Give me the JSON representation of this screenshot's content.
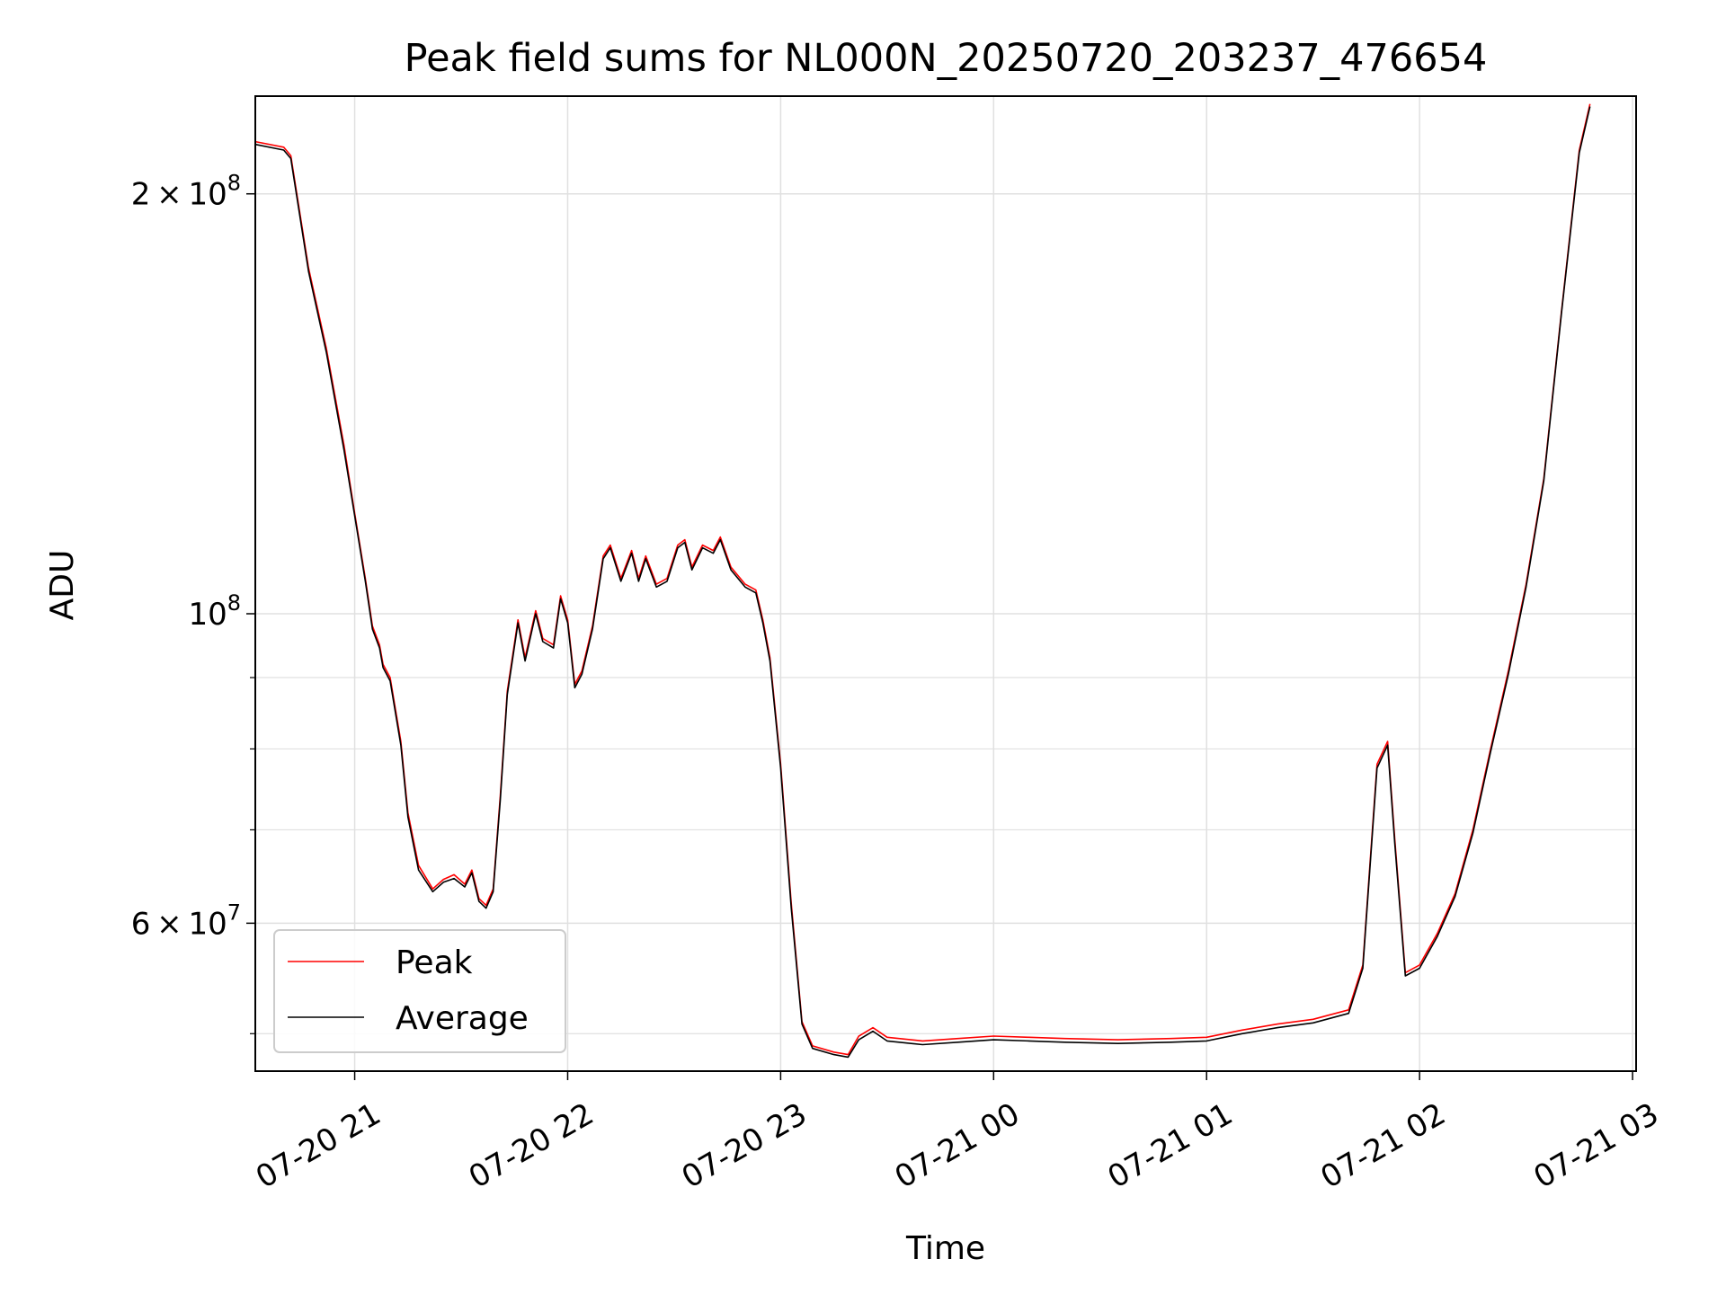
{
  "chart_data": {
    "type": "line",
    "title": "Peak field sums for NL000N_20250720_203237_476654",
    "xlabel": "Time",
    "ylabel": "ADU",
    "x_range": [
      "2025-07-20 20:32",
      "2025-07-21 03:01"
    ],
    "ylim": [
      47000000,
      235000000
    ],
    "y_scale": "log",
    "grid": true,
    "legend_placement": "lower-left",
    "x_tick_labels": [
      "07-20 21",
      "07-20 22",
      "07-20 23",
      "07-21 00",
      "07-21 01",
      "07-21 02",
      "07-21 03"
    ],
    "y_tick_labels": [
      {
        "value": 200000000,
        "mantissa": "2",
        "exp": "8"
      },
      {
        "value": 100000000,
        "mantissa": "",
        "exp": "8"
      },
      {
        "value": 60000000,
        "mantissa": "6",
        "exp": "7"
      }
    ],
    "series": [
      {
        "name": "Peak",
        "color": "#ff0000",
        "points": [
          [
            "2025-07-20 20:32",
            218000000
          ],
          [
            "2025-07-20 20:40",
            216000000
          ],
          [
            "2025-07-20 20:42",
            213000000
          ],
          [
            "2025-07-20 20:47",
            177000000
          ],
          [
            "2025-07-20 20:52",
            155000000
          ],
          [
            "2025-07-20 20:57",
            132000000
          ],
          [
            "2025-07-20 21:00",
            118000000
          ],
          [
            "2025-07-20 21:03",
            106000000
          ],
          [
            "2025-07-20 21:05",
            98000000
          ],
          [
            "2025-07-20 21:07",
            95000000
          ],
          [
            "2025-07-20 21:08",
            92000000
          ],
          [
            "2025-07-20 21:10",
            90000000
          ],
          [
            "2025-07-20 21:13",
            81000000
          ],
          [
            "2025-07-20 21:15",
            72000000
          ],
          [
            "2025-07-20 21:18",
            66000000
          ],
          [
            "2025-07-20 21:22",
            63500000
          ],
          [
            "2025-07-20 21:25",
            64500000
          ],
          [
            "2025-07-20 21:28",
            65000000
          ],
          [
            "2025-07-20 21:31",
            64000000
          ],
          [
            "2025-07-20 21:33",
            65500000
          ],
          [
            "2025-07-20 21:35",
            62500000
          ],
          [
            "2025-07-20 21:37",
            61800000
          ],
          [
            "2025-07-20 21:39",
            63500000
          ],
          [
            "2025-07-20 21:41",
            74000000
          ],
          [
            "2025-07-20 21:43",
            88000000
          ],
          [
            "2025-07-20 21:46",
            99000000
          ],
          [
            "2025-07-20 21:48",
            93000000
          ],
          [
            "2025-07-20 21:51",
            100500000
          ],
          [
            "2025-07-20 21:53",
            96000000
          ],
          [
            "2025-07-20 21:56",
            95000000
          ],
          [
            "2025-07-20 21:58",
            103000000
          ],
          [
            "2025-07-20 22:00",
            99000000
          ],
          [
            "2025-07-20 22:02",
            89000000
          ],
          [
            "2025-07-20 22:04",
            91000000
          ],
          [
            "2025-07-20 22:07",
            98000000
          ],
          [
            "2025-07-20 22:10",
            110000000
          ],
          [
            "2025-07-20 22:12",
            112000000
          ],
          [
            "2025-07-20 22:15",
            106000000
          ],
          [
            "2025-07-20 22:18",
            111000000
          ],
          [
            "2025-07-20 22:20",
            106000000
          ],
          [
            "2025-07-20 22:22",
            110000000
          ],
          [
            "2025-07-20 22:25",
            105000000
          ],
          [
            "2025-07-20 22:28",
            106000000
          ],
          [
            "2025-07-20 22:31",
            112000000
          ],
          [
            "2025-07-20 22:33",
            113000000
          ],
          [
            "2025-07-20 22:35",
            108000000
          ],
          [
            "2025-07-20 22:38",
            112000000
          ],
          [
            "2025-07-20 22:41",
            111000000
          ],
          [
            "2025-07-20 22:43",
            113500000
          ],
          [
            "2025-07-20 22:46",
            108000000
          ],
          [
            "2025-07-20 22:50",
            105000000
          ],
          [
            "2025-07-20 22:53",
            104000000
          ],
          [
            "2025-07-20 22:55",
            99000000
          ],
          [
            "2025-07-20 22:57",
            93000000
          ],
          [
            "2025-07-20 23:00",
            78000000
          ],
          [
            "2025-07-20 23:03",
            62000000
          ],
          [
            "2025-07-20 23:06",
            51000000
          ],
          [
            "2025-07-20 23:09",
            49000000
          ],
          [
            "2025-07-20 23:15",
            48500000
          ],
          [
            "2025-07-20 23:19",
            48300000
          ],
          [
            "2025-07-20 23:22",
            49800000
          ],
          [
            "2025-07-20 23:26",
            50500000
          ],
          [
            "2025-07-20 23:30",
            49700000
          ],
          [
            "2025-07-20 23:40",
            49400000
          ],
          [
            "2025-07-20 23:50",
            49600000
          ],
          [
            "2025-07-21 00:00",
            49800000
          ],
          [
            "2025-07-21 00:10",
            49700000
          ],
          [
            "2025-07-21 00:20",
            49600000
          ],
          [
            "2025-07-21 00:35",
            49500000
          ],
          [
            "2025-07-21 00:50",
            49600000
          ],
          [
            "2025-07-21 01:00",
            49700000
          ],
          [
            "2025-07-21 01:10",
            50300000
          ],
          [
            "2025-07-21 01:20",
            50800000
          ],
          [
            "2025-07-21 01:30",
            51200000
          ],
          [
            "2025-07-21 01:40",
            52000000
          ],
          [
            "2025-07-21 01:44",
            56000000
          ],
          [
            "2025-07-21 01:48",
            78000000
          ],
          [
            "2025-07-21 01:51",
            81000000
          ],
          [
            "2025-07-21 01:53",
            69000000
          ],
          [
            "2025-07-21 01:56",
            55300000
          ],
          [
            "2025-07-21 02:00",
            56000000
          ],
          [
            "2025-07-21 02:05",
            59000000
          ],
          [
            "2025-07-21 02:10",
            63000000
          ],
          [
            "2025-07-21 02:15",
            70000000
          ],
          [
            "2025-07-21 02:20",
            80000000
          ],
          [
            "2025-07-21 02:25",
            91000000
          ],
          [
            "2025-07-21 02:30",
            105000000
          ],
          [
            "2025-07-21 02:35",
            125000000
          ],
          [
            "2025-07-21 02:40",
            165000000
          ],
          [
            "2025-07-21 02:45",
            215000000
          ],
          [
            "2025-07-21 02:48",
            232000000
          ]
        ]
      },
      {
        "name": "Average",
        "color": "#000000",
        "points": [
          [
            "2025-07-20 20:32",
            217000000
          ],
          [
            "2025-07-20 20:40",
            215000000
          ],
          [
            "2025-07-20 20:42",
            212000000
          ],
          [
            "2025-07-20 20:47",
            176000000
          ],
          [
            "2025-07-20 20:52",
            154000000
          ],
          [
            "2025-07-20 20:57",
            131000000
          ],
          [
            "2025-07-20 21:00",
            117500000
          ],
          [
            "2025-07-20 21:03",
            105500000
          ],
          [
            "2025-07-20 21:05",
            97500000
          ],
          [
            "2025-07-20 21:07",
            94500000
          ],
          [
            "2025-07-20 21:08",
            91500000
          ],
          [
            "2025-07-20 21:10",
            89500000
          ],
          [
            "2025-07-20 21:13",
            80500000
          ],
          [
            "2025-07-20 21:15",
            71500000
          ],
          [
            "2025-07-20 21:18",
            65500000
          ],
          [
            "2025-07-20 21:22",
            63200000
          ],
          [
            "2025-07-20 21:25",
            64200000
          ],
          [
            "2025-07-20 21:28",
            64600000
          ],
          [
            "2025-07-20 21:31",
            63700000
          ],
          [
            "2025-07-20 21:33",
            65200000
          ],
          [
            "2025-07-20 21:35",
            62200000
          ],
          [
            "2025-07-20 21:37",
            61500000
          ],
          [
            "2025-07-20 21:39",
            63200000
          ],
          [
            "2025-07-20 21:41",
            73500000
          ],
          [
            "2025-07-20 21:43",
            87500000
          ],
          [
            "2025-07-20 21:46",
            98500000
          ],
          [
            "2025-07-20 21:48",
            92500000
          ],
          [
            "2025-07-20 21:51",
            100000000
          ],
          [
            "2025-07-20 21:53",
            95500000
          ],
          [
            "2025-07-20 21:56",
            94500000
          ],
          [
            "2025-07-20 21:58",
            102500000
          ],
          [
            "2025-07-20 22:00",
            98500000
          ],
          [
            "2025-07-20 22:02",
            88500000
          ],
          [
            "2025-07-20 22:04",
            90500000
          ],
          [
            "2025-07-20 22:07",
            97500000
          ],
          [
            "2025-07-20 22:10",
            109500000
          ],
          [
            "2025-07-20 22:12",
            111500000
          ],
          [
            "2025-07-20 22:15",
            105500000
          ],
          [
            "2025-07-20 22:18",
            110500000
          ],
          [
            "2025-07-20 22:20",
            105500000
          ],
          [
            "2025-07-20 22:22",
            109500000
          ],
          [
            "2025-07-20 22:25",
            104500000
          ],
          [
            "2025-07-20 22:28",
            105500000
          ],
          [
            "2025-07-20 22:31",
            111500000
          ],
          [
            "2025-07-20 22:33",
            112500000
          ],
          [
            "2025-07-20 22:35",
            107500000
          ],
          [
            "2025-07-20 22:38",
            111500000
          ],
          [
            "2025-07-20 22:41",
            110500000
          ],
          [
            "2025-07-20 22:43",
            113000000
          ],
          [
            "2025-07-20 22:46",
            107500000
          ],
          [
            "2025-07-20 22:50",
            104500000
          ],
          [
            "2025-07-20 22:53",
            103500000
          ],
          [
            "2025-07-20 22:55",
            98500000
          ],
          [
            "2025-07-20 22:57",
            92500000
          ],
          [
            "2025-07-20 23:00",
            77500000
          ],
          [
            "2025-07-20 23:03",
            61500000
          ],
          [
            "2025-07-20 23:06",
            50800000
          ],
          [
            "2025-07-20 23:09",
            48800000
          ],
          [
            "2025-07-20 23:15",
            48300000
          ],
          [
            "2025-07-20 23:19",
            48100000
          ],
          [
            "2025-07-20 23:22",
            49500000
          ],
          [
            "2025-07-20 23:26",
            50200000
          ],
          [
            "2025-07-20 23:30",
            49400000
          ],
          [
            "2025-07-20 23:40",
            49100000
          ],
          [
            "2025-07-20 23:50",
            49300000
          ],
          [
            "2025-07-21 00:00",
            49500000
          ],
          [
            "2025-07-21 00:10",
            49400000
          ],
          [
            "2025-07-21 00:20",
            49300000
          ],
          [
            "2025-07-21 00:35",
            49200000
          ],
          [
            "2025-07-21 00:50",
            49300000
          ],
          [
            "2025-07-21 01:00",
            49400000
          ],
          [
            "2025-07-21 01:10",
            50000000
          ],
          [
            "2025-07-21 01:20",
            50500000
          ],
          [
            "2025-07-21 01:30",
            50900000
          ],
          [
            "2025-07-21 01:40",
            51700000
          ],
          [
            "2025-07-21 01:44",
            55700000
          ],
          [
            "2025-07-21 01:48",
            77500000
          ],
          [
            "2025-07-21 01:51",
            80500000
          ],
          [
            "2025-07-21 01:53",
            68500000
          ],
          [
            "2025-07-21 01:56",
            55000000
          ],
          [
            "2025-07-21 02:00",
            55700000
          ],
          [
            "2025-07-21 02:05",
            58700000
          ],
          [
            "2025-07-21 02:10",
            62700000
          ],
          [
            "2025-07-21 02:15",
            69600000
          ],
          [
            "2025-07-21 02:20",
            79600000
          ],
          [
            "2025-07-21 02:25",
            90500000
          ],
          [
            "2025-07-21 02:30",
            104500000
          ],
          [
            "2025-07-21 02:35",
            124500000
          ],
          [
            "2025-07-21 02:40",
            164500000
          ],
          [
            "2025-07-21 02:45",
            214000000
          ],
          [
            "2025-07-21 02:48",
            231000000
          ]
        ]
      }
    ]
  }
}
